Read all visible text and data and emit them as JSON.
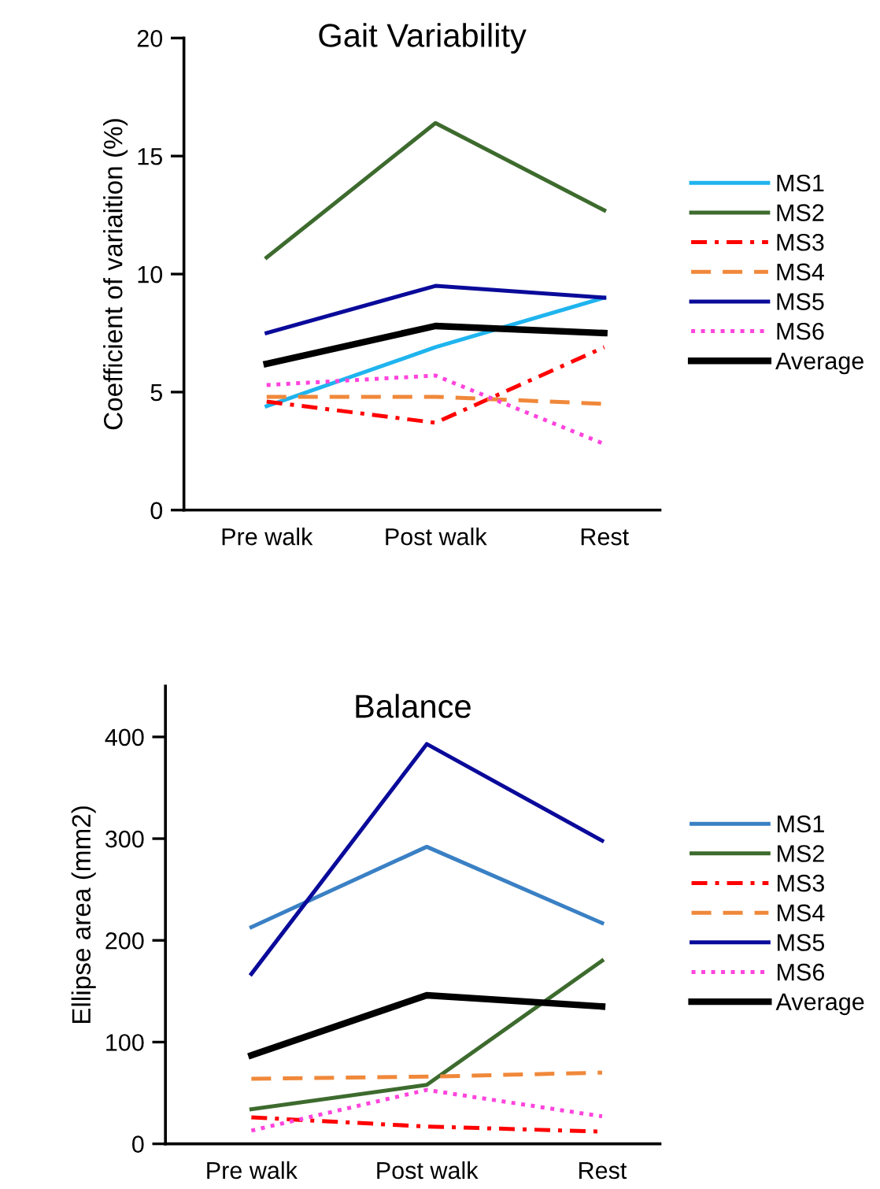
{
  "chart_data": [
    {
      "type": "line",
      "title": "Gait Variability",
      "ylabel": "Coefficient of variaition (%)",
      "categories": [
        "Pre walk",
        "Post walk",
        "Rest"
      ],
      "ylim": [
        0,
        20
      ],
      "yticks": [
        0,
        5,
        10,
        15,
        20
      ],
      "grid": false,
      "legend": "right",
      "marker": "none",
      "series": [
        {
          "name": "MS1",
          "color": "#1fb4ee",
          "line_style": "solid",
          "values": [
            4.4,
            6.9,
            9.0
          ]
        },
        {
          "name": "MS2",
          "color": "#3d6b2e",
          "line_style": "solid",
          "values": [
            10.7,
            16.4,
            12.7
          ]
        },
        {
          "name": "MS3",
          "color": "#ff0000",
          "line_style": "dashdot",
          "values": [
            4.6,
            3.7,
            6.9
          ]
        },
        {
          "name": "MS4",
          "color": "#f0883a",
          "line_style": "dashed",
          "values": [
            4.8,
            4.8,
            4.5
          ]
        },
        {
          "name": "MS5",
          "color": "#0a0a9a",
          "line_style": "solid",
          "values": [
            7.5,
            9.5,
            9.0
          ]
        },
        {
          "name": "MS6",
          "color": "#ff44dd",
          "line_style": "dotted",
          "values": [
            5.3,
            5.7,
            2.8
          ]
        },
        {
          "name": "Average",
          "color": "#000000",
          "line_style": "solid",
          "values": [
            6.2,
            7.8,
            7.5
          ]
        }
      ]
    },
    {
      "type": "line",
      "title": "Balance",
      "ylabel": "Ellipse area (mm2)",
      "categories": [
        "Pre walk",
        "Post walk",
        "Rest"
      ],
      "ylim": [
        0,
        450
      ],
      "yticks": [
        0,
        100,
        200,
        300,
        400
      ],
      "grid": false,
      "legend": "right",
      "marker": "none",
      "series": [
        {
          "name": "MS1",
          "color": "#3a80c4",
          "line_style": "solid",
          "values": [
            213,
            292,
            217
          ]
        },
        {
          "name": "MS2",
          "color": "#3d6b2e",
          "line_style": "solid",
          "values": [
            34,
            58,
            180
          ]
        },
        {
          "name": "MS3",
          "color": "#ff0000",
          "line_style": "dashdot",
          "values": [
            26,
            17,
            12
          ]
        },
        {
          "name": "MS4",
          "color": "#f0883a",
          "line_style": "dashed",
          "values": [
            64,
            66,
            70
          ]
        },
        {
          "name": "MS5",
          "color": "#0a0a9a",
          "line_style": "solid",
          "values": [
            167,
            393,
            298
          ]
        },
        {
          "name": "MS6",
          "color": "#ff44dd",
          "line_style": "dotted",
          "values": [
            13,
            53,
            27
          ]
        },
        {
          "name": "Average",
          "color": "#000000",
          "line_style": "solid",
          "values": [
            87,
            146,
            135
          ]
        }
      ]
    }
  ]
}
